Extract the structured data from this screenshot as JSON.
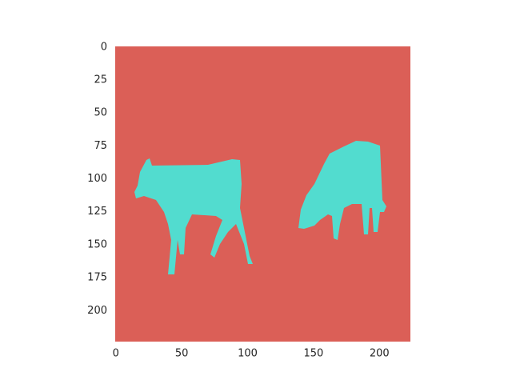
{
  "chart_data": {
    "type": "image",
    "xlim": [
      -0.5,
      223.5
    ],
    "ylim": [
      223.5,
      -0.5
    ],
    "xticks": [
      0,
      50,
      100,
      150,
      200
    ],
    "yticks": [
      0,
      25,
      50,
      75,
      100,
      125,
      150,
      175,
      200
    ],
    "colors": [
      "#db5f57",
      "#52dccf"
    ]
  }
}
